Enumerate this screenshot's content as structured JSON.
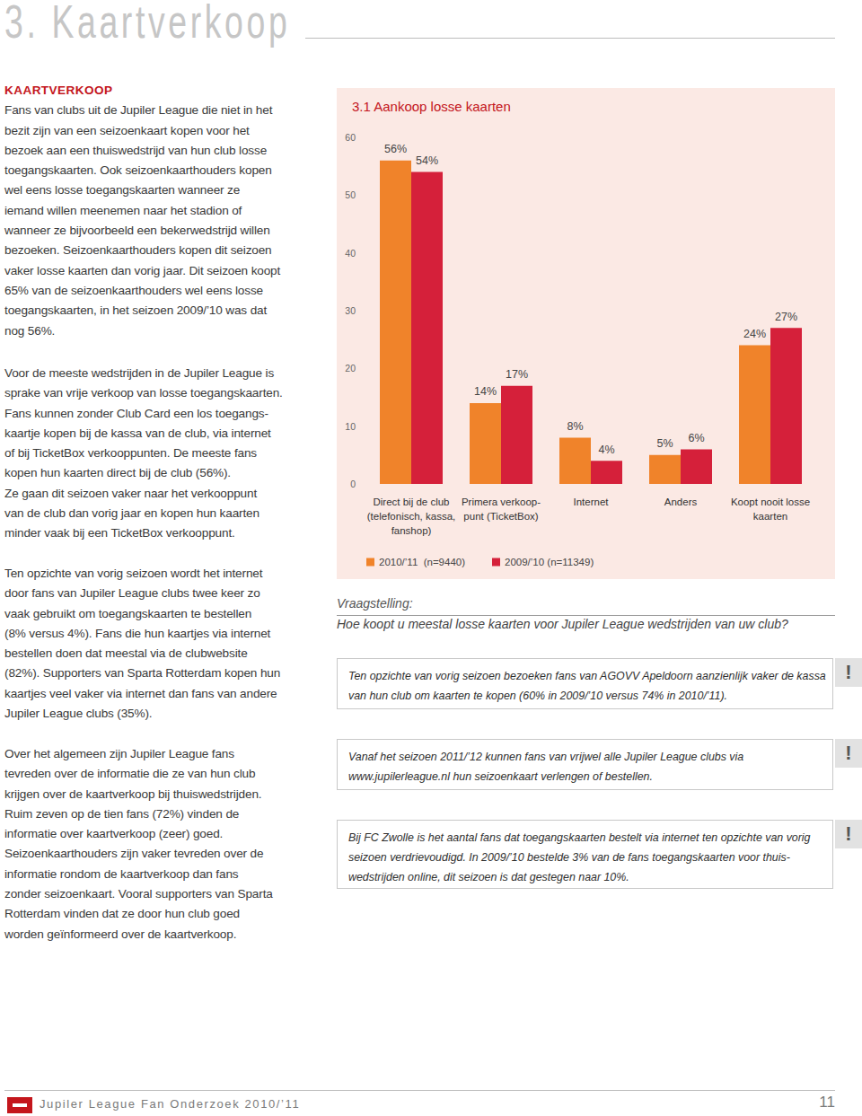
{
  "header": {
    "title": "3. Kaartverkoop"
  },
  "left_column": {
    "heading": "KAARTVERKOOP",
    "paragraphs": [
      [
        "Fans van clubs uit de Jupiler League die niet in het",
        "bezit zijn van een seizoenkaart kopen voor het",
        "bezoek aan een thuiswedstrijd van hun club losse",
        "toegangskaarten. Ook seizoenkaarthouders kopen",
        "wel eens losse toegangskaarten wanneer ze",
        "iemand willen meenemen naar het stadion of",
        "wanneer ze bijvoorbeeld een bekerwedstrijd willen",
        "bezoeken. Seizoenkaarthouders kopen dit seizoen",
        "vaker losse kaarten dan vorig jaar. Dit seizoen koopt",
        "65% van de seizoenkaarthouders wel eens losse",
        "toegangskaarten, in het seizoen 2009/’10 was dat",
        "nog 56%."
      ],
      [
        "Voor de meeste wedstrijden in de Jupiler League is",
        "sprake van vrije verkoop van losse toegangskaarten.",
        "Fans kunnen zonder Club Card een los toegangs-",
        "kaartje kopen bij de kassa van de club, via internet",
        "of bij TicketBox verkooppunten. De meeste fans",
        "kopen hun kaarten direct bij de club (56%).",
        "Ze gaan dit seizoen vaker naar het verkooppunt",
        "van de club dan vorig jaar en kopen hun kaarten",
        "minder vaak bij een TicketBox verkooppunt."
      ],
      [
        "Ten opzichte van vorig seizoen wordt het internet",
        "door fans van Jupiler League clubs twee keer zo",
        "vaak gebruikt om toegangskaarten te bestellen",
        "(8% versus 4%). Fans die hun kaartjes via internet",
        "bestellen doen dat meestal via de clubwebsite",
        "(82%). Supporters van Sparta Rotterdam kopen hun",
        "kaartjes veel vaker via internet dan fans van andere",
        "Jupiler League clubs (35%)."
      ],
      [
        "Over het algemeen zijn Jupiler League fans",
        "tevreden over de informatie die ze van hun club",
        "krijgen over de kaartverkoop bij thuiswedstrijden.",
        "Ruim zeven op de tien fans (72%) vinden de",
        "informatie over kaartverkoop (zeer) goed.",
        "Seizoenkaarthouders zijn vaker tevreden over de",
        "informatie rondom de kaartverkoop dan fans",
        "zonder seizoenkaart. Vooral supporters van Sparta",
        "Rotterdam vinden dat ze door hun club goed",
        "worden geïnformeerd over de kaartverkoop."
      ]
    ]
  },
  "chart_data": {
    "type": "bar",
    "title": "3.1 Aankoop losse kaarten",
    "categories": [
      "Direct bij de club\n(telefonisch, kassa,\nfanshop)",
      "Primera verkoop-\npunt (TicketBox)",
      "Internet",
      "Anders",
      "Koopt nooit losse\nkaarten"
    ],
    "series": [
      {
        "name": "2010/’11  (n=9440)",
        "color": "#f0832a",
        "values": [
          56,
          14,
          8,
          5,
          24
        ],
        "value_labels": [
          "56%",
          "14%",
          "8%",
          "5%",
          "24%"
        ]
      },
      {
        "name": "2009/’10 (n=11349)",
        "color": "#d5203a",
        "values": [
          54,
          17,
          4,
          6,
          27
        ],
        "value_labels": [
          "54%",
          "17%",
          "4%",
          "6%",
          "27%"
        ]
      }
    ],
    "ylim": [
      0,
      60
    ],
    "yticks": [
      0,
      10,
      20,
      30,
      40,
      50,
      60
    ],
    "grid": false,
    "legend": "bottom left",
    "data_labels": true
  },
  "question": {
    "label": "Vraagstelling:",
    "text": "Hoe koopt u meestal losse kaarten voor Jupiler League wedstrijden van uw club?"
  },
  "callouts": [
    {
      "icon": "!",
      "lines": [
        "Ten opzichte van vorig seizoen bezoeken fans van AGOVV Apeldoorn aanzienlijk vaker de kassa",
        "van hun club om kaarten te kopen (60% in 2009/’10 versus 74% in 2010/’11)."
      ]
    },
    {
      "icon": "!",
      "lines": [
        "Vanaf het seizoen 2011/’12 kunnen fans van vrijwel alle Jupiler League clubs via",
        "www.jupilerleague.nl hun seizoenkaart verlengen of bestellen."
      ]
    },
    {
      "icon": "!",
      "lines": [
        "Bij FC Zwolle is het aantal fans dat toegangskaarten bestelt via internet ten opzichte van vorig",
        "seizoen verdrievoudigd. In 2009/’10 bestelde 3% van de fans toegangskaarten voor thuis-",
        "wedstrijden online, dit seizoen is dat gestegen naar 10%."
      ]
    }
  ],
  "footer": {
    "text": "Jupiler League Fan Onderzoek 2010/’11",
    "page": "11"
  }
}
